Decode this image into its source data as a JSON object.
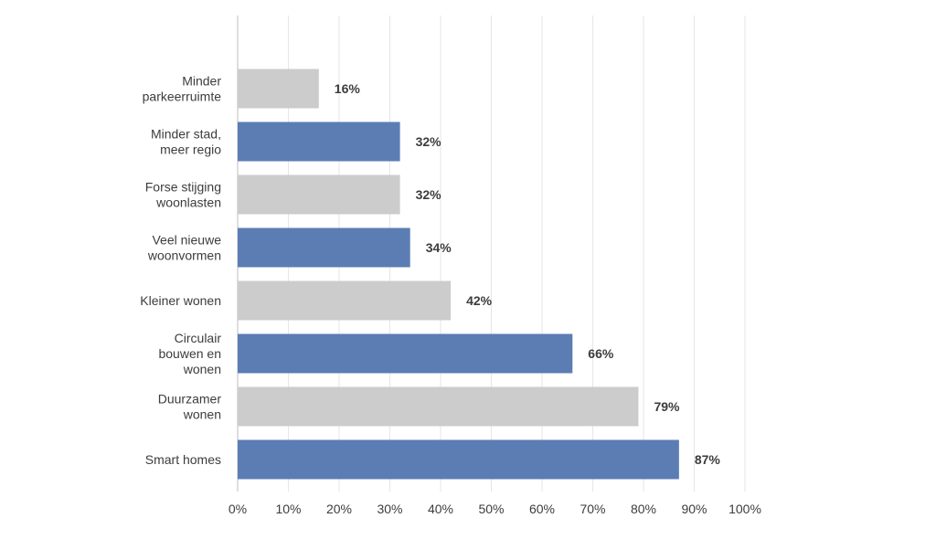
{
  "chart_data": {
    "type": "bar",
    "orientation": "horizontal",
    "title": "",
    "xlabel": "",
    "ylabel": "",
    "xlim": [
      0,
      100
    ],
    "ticks": [
      "0%",
      "10%",
      "20%",
      "30%",
      "40%",
      "50%",
      "60%",
      "70%",
      "80%",
      "90%",
      "100%"
    ],
    "grid": true,
    "legend": "none",
    "colors": {
      "blue": "#5b7db4",
      "gray": "#cccccc"
    },
    "categories": [
      {
        "lines": [
          "Minder",
          "parkeerruimte"
        ],
        "value": 16,
        "label": "16%",
        "color": "gray"
      },
      {
        "lines": [
          "Minder stad,",
          "meer regio"
        ],
        "value": 32,
        "label": "32%",
        "color": "blue"
      },
      {
        "lines": [
          "Forse stijging",
          "woonlasten"
        ],
        "value": 32,
        "label": "32%",
        "color": "gray"
      },
      {
        "lines": [
          "Veel nieuwe",
          "woonvormen"
        ],
        "value": 34,
        "label": "34%",
        "color": "blue"
      },
      {
        "lines": [
          "Kleiner wonen"
        ],
        "value": 42,
        "label": "42%",
        "color": "gray"
      },
      {
        "lines": [
          "Circulair",
          "bouwen en",
          "wonen"
        ],
        "value": 66,
        "label": "66%",
        "color": "blue"
      },
      {
        "lines": [
          "Duurzamer",
          "wonen"
        ],
        "value": 79,
        "label": "79%",
        "color": "gray"
      },
      {
        "lines": [
          "Smart homes"
        ],
        "value": 87,
        "label": "87%",
        "color": "blue"
      }
    ]
  }
}
